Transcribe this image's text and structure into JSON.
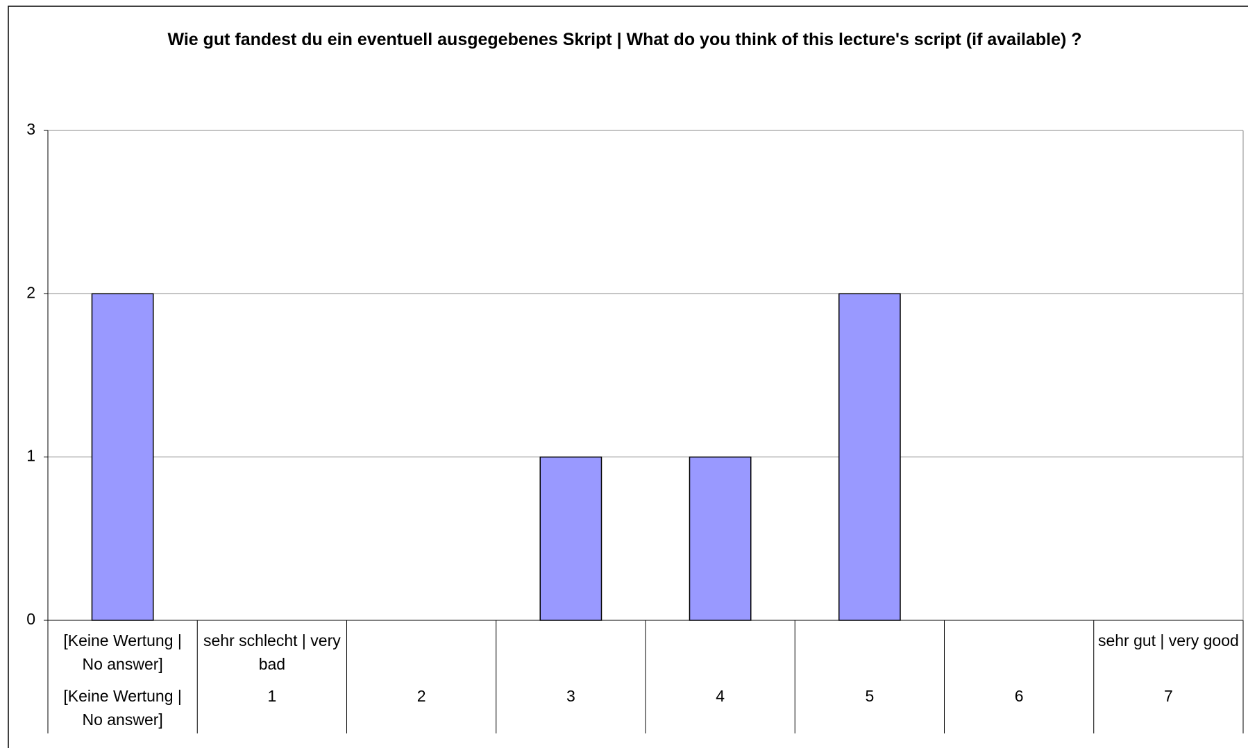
{
  "chart_data": {
    "type": "bar",
    "title": "Wie gut fandest du ein eventuell ausgegebenes Skript | What do you think of this lecture's script (if available) ?",
    "scale_labels": [
      "[Keine Wertung | No answer]",
      "sehr schlecht | very bad",
      null,
      null,
      null,
      null,
      null,
      "sehr gut | very good"
    ],
    "categories": [
      "[Keine Wertung | No answer]",
      "1",
      "2",
      "3",
      "4",
      "5",
      "6",
      "7"
    ],
    "values": [
      2,
      0,
      0,
      1,
      1,
      2,
      0,
      0
    ],
    "color": "#9999ff",
    "ylim": [
      0,
      3
    ],
    "yticks": [
      0,
      1,
      2,
      3
    ],
    "grid": true
  }
}
